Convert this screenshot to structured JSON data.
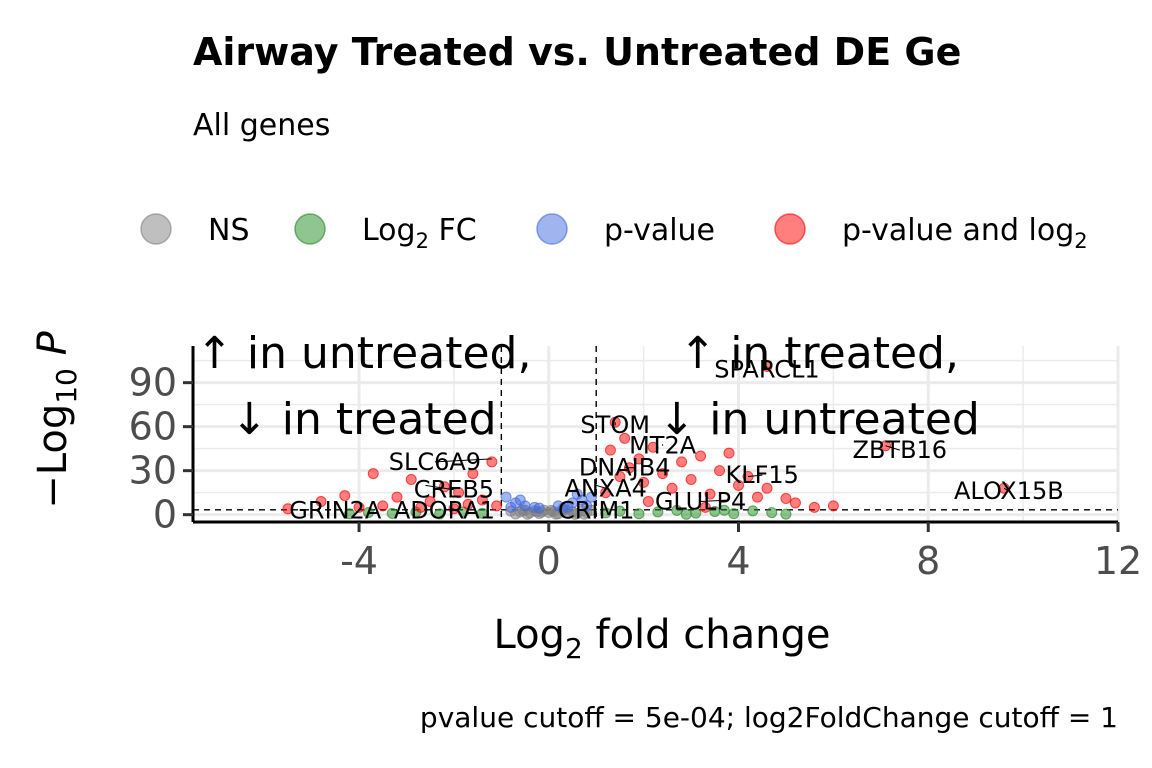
{
  "chart_data": {
    "type": "scatter",
    "title": "Airway Treated vs. Untreated DE Ge",
    "subtitle": "All genes",
    "caption": "pvalue cutoff = 5e-04; log2FoldChange cutoff = 1",
    "xlabel": "Log2 fold change",
    "ylabel": "-Log10 P",
    "xlim": [
      -7.5,
      12
    ],
    "ylim": [
      -5,
      115
    ],
    "xticks": [
      -4,
      0,
      4,
      8,
      12
    ],
    "yticks": [
      0,
      30,
      60,
      90
    ],
    "grid": true,
    "legend_position": "top",
    "cutoffs": {
      "log2fc": [
        -1,
        1
      ],
      "neg_log10_p": 3.3
    },
    "legend": [
      {
        "key": "NS",
        "label": "NS",
        "color": "#808080"
      },
      {
        "key": "FC",
        "label": "Log2 FC",
        "color": "#228b22"
      },
      {
        "key": "P",
        "label": "p-value",
        "color": "#4169e1"
      },
      {
        "key": "PFC",
        "label": "p-value and log2",
        "color": "#ff0000"
      }
    ],
    "annotations": [
      {
        "text": "↑ in untreated,",
        "x": -3.9,
        "y": 100
      },
      {
        "text": "↓ in treated",
        "x": -3.9,
        "y": 55
      },
      {
        "text": "↑ in treated,",
        "x": 5.7,
        "y": 100
      },
      {
        "text": "↓ in untreated",
        "x": 5.7,
        "y": 55
      }
    ],
    "genes": [
      {
        "name": "SPARCL1",
        "x": 4.6,
        "y": 101,
        "lx": 4.6,
        "ly": 99
      },
      {
        "name": "STOM",
        "x": 1.4,
        "y": 63,
        "lx": 1.4,
        "ly": 61
      },
      {
        "name": "MT2A",
        "x": 2.4,
        "y": 48,
        "lx": 2.4,
        "ly": 47
      },
      {
        "name": "ZBTB16",
        "x": 7.1,
        "y": 47,
        "lx": 7.4,
        "ly": 44
      },
      {
        "name": "SLC6A9",
        "x": -1.2,
        "y": 38,
        "lx": -2.4,
        "ly": 36
      },
      {
        "name": "DNAJB4",
        "x": 1.8,
        "y": 32,
        "lx": 1.6,
        "ly": 32
      },
      {
        "name": "KLF15",
        "x": 4.2,
        "y": 26,
        "lx": 4.5,
        "ly": 27
      },
      {
        "name": "CREB5",
        "x": -2.6,
        "y": 20,
        "lx": -2.0,
        "ly": 17
      },
      {
        "name": "ANXA4",
        "x": 1.0,
        "y": 20,
        "lx": 1.2,
        "ly": 18
      },
      {
        "name": "ALOX15B",
        "x": 9.6,
        "y": 18,
        "lx": 9.7,
        "ly": 16
      },
      {
        "name": "GLULP4",
        "x": 3.8,
        "y": 10,
        "lx": 3.2,
        "ly": 9
      },
      {
        "name": "GRIN2A",
        "x": -4.5,
        "y": 5,
        "lx": -4.5,
        "ly": 3
      },
      {
        "name": "ADORA1",
        "x": -2.0,
        "y": 4,
        "lx": -2.2,
        "ly": 3
      },
      {
        "name": "CRIM1",
        "x": 1.0,
        "y": 4,
        "lx": 1.0,
        "ly": 3
      }
    ],
    "series": [
      {
        "name": "NS",
        "points": [
          [
            -0.8,
            2.4
          ],
          [
            -0.6,
            1.8
          ],
          [
            -0.5,
            3.1
          ],
          [
            -0.4,
            1.2
          ],
          [
            -0.3,
            2.6
          ],
          [
            -0.2,
            0.8
          ],
          [
            -0.1,
            3.0
          ],
          [
            0.0,
            1.5
          ],
          [
            0.1,
            2.2
          ],
          [
            0.2,
            0.6
          ],
          [
            0.3,
            2.8
          ],
          [
            0.4,
            1.1
          ],
          [
            0.5,
            2.0
          ],
          [
            0.6,
            0.9
          ],
          [
            0.7,
            2.7
          ],
          [
            0.8,
            1.4
          ],
          [
            0.9,
            3.0
          ],
          [
            -0.7,
            0.5
          ],
          [
            -0.45,
            0.3
          ],
          [
            0.15,
            0.4
          ],
          [
            0.55,
            0.2
          ],
          [
            -0.25,
            2.0
          ],
          [
            0.35,
            3.2
          ],
          [
            -0.55,
            2.9
          ],
          [
            0.75,
            0.3
          ],
          [
            0.05,
            2.9
          ],
          [
            -0.15,
            1.7
          ]
        ]
      },
      {
        "name": "Log2 FC",
        "points": [
          [
            -4.2,
            0.6
          ],
          [
            -3.8,
            1.5
          ],
          [
            -3.3,
            0.9
          ],
          [
            -2.8,
            1.7
          ],
          [
            -2.3,
            0.5
          ],
          [
            -1.8,
            1.9
          ],
          [
            -1.4,
            1.0
          ],
          [
            1.2,
            1.2
          ],
          [
            1.5,
            2.4
          ],
          [
            1.9,
            0.6
          ],
          [
            2.3,
            1.8
          ],
          [
            2.7,
            2.9
          ],
          [
            3.1,
            1.1
          ],
          [
            3.5,
            2.2
          ],
          [
            3.9,
            0.7
          ],
          [
            4.3,
            2.6
          ],
          [
            4.7,
            1.4
          ],
          [
            5.0,
            0.4
          ],
          [
            2.9,
            0.3
          ],
          [
            3.7,
            3.0
          ]
        ]
      },
      {
        "name": "p-value",
        "points": [
          [
            -0.9,
            12
          ],
          [
            -0.7,
            8
          ],
          [
            -0.5,
            6
          ],
          [
            -0.3,
            5
          ],
          [
            -0.6,
            10
          ],
          [
            -0.8,
            5
          ],
          [
            0.2,
            6
          ],
          [
            0.5,
            8
          ],
          [
            0.7,
            10
          ],
          [
            0.9,
            12
          ],
          [
            0.4,
            5
          ],
          [
            0.6,
            14
          ],
          [
            0.8,
            6
          ],
          [
            -0.2,
            4.5
          ],
          [
            0.3,
            4.2
          ]
        ]
      },
      {
        "name": "p-value and log2",
        "points": [
          [
            -5.5,
            4
          ],
          [
            -4.8,
            9
          ],
          [
            -4.3,
            13
          ],
          [
            -3.7,
            28
          ],
          [
            -3.2,
            12
          ],
          [
            -2.9,
            24
          ],
          [
            -2.5,
            9
          ],
          [
            -2.2,
            19
          ],
          [
            -1.9,
            15
          ],
          [
            -1.6,
            28
          ],
          [
            -1.4,
            10
          ],
          [
            -1.2,
            36
          ],
          [
            -1.1,
            6
          ],
          [
            -2.7,
            5
          ],
          [
            -3.5,
            6
          ],
          [
            -4.0,
            5
          ],
          [
            -1.7,
            7
          ],
          [
            -2.0,
            4
          ],
          [
            1.2,
            15
          ],
          [
            1.3,
            44
          ],
          [
            1.5,
            26
          ],
          [
            1.6,
            52
          ],
          [
            1.7,
            32
          ],
          [
            1.9,
            38
          ],
          [
            2.0,
            22
          ],
          [
            2.2,
            46
          ],
          [
            2.4,
            28
          ],
          [
            2.6,
            18
          ],
          [
            2.8,
            36
          ],
          [
            3.0,
            24
          ],
          [
            3.2,
            40
          ],
          [
            3.4,
            14
          ],
          [
            3.6,
            30
          ],
          [
            3.8,
            42
          ],
          [
            4.0,
            20
          ],
          [
            4.2,
            26
          ],
          [
            4.4,
            12
          ],
          [
            4.6,
            18
          ],
          [
            5.2,
            8
          ],
          [
            5.6,
            5
          ],
          [
            6.0,
            6
          ],
          [
            7.1,
            47
          ],
          [
            9.6,
            18
          ],
          [
            1.4,
            63
          ],
          [
            4.6,
            101
          ],
          [
            3.3,
            5
          ],
          [
            2.1,
            9
          ],
          [
            5.0,
            11
          ]
        ]
      }
    ]
  }
}
